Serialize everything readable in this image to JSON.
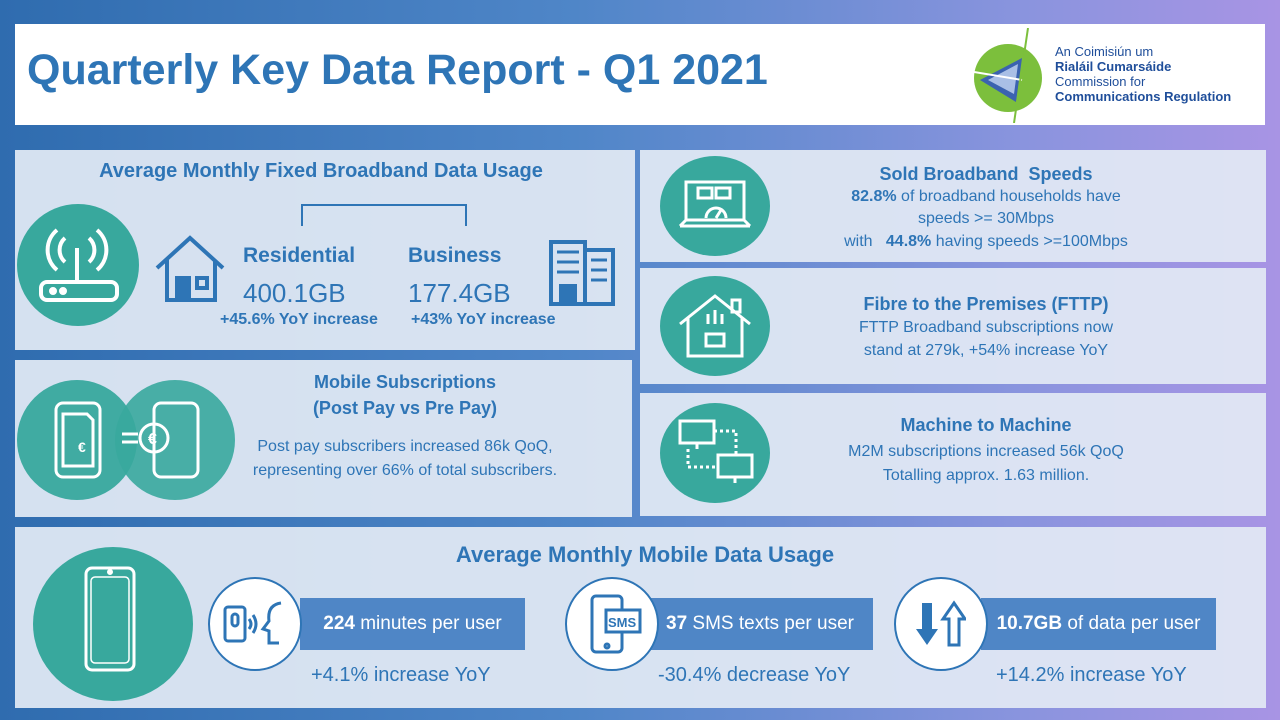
{
  "header": {
    "title": "Quarterly Key Data Report - Q1 2021",
    "logo": {
      "line1": "An Coimisiún um",
      "line2": "Rialáil Cumarsáide",
      "line3": "Commission for",
      "line4": "Communications Regulation"
    }
  },
  "fixed_broadband": {
    "title": "Average Monthly Fixed Broadband Data Usage",
    "residential": {
      "label": "Residential",
      "value": "400.1GB",
      "change": "+45.6% YoY increase"
    },
    "business": {
      "label": "Business",
      "value": "177.4GB",
      "change": "+43% YoY increase"
    }
  },
  "mobile_subs": {
    "title1": "Mobile Subscriptions",
    "title2": "(Post Pay vs Pre Pay)",
    "line1": "Post pay subscribers increased 86k QoQ,",
    "line2": "representing over 66% of total subscribers."
  },
  "speeds": {
    "title": "Sold Broadband  Speeds",
    "pct1": "82.8%",
    "line1": " of broadband households have",
    "line2": "speeds >= 30Mbps",
    "pre3": "with   ",
    "pct2": "44.8%",
    "line3": " having speeds >=100Mbps"
  },
  "fttp": {
    "title": "Fibre to the Premises (FTTP)",
    "line1": "FTTP Broadband subscriptions now",
    "line2": "stand at 279k, +54% increase YoY"
  },
  "m2m": {
    "title": "Machine to Machine",
    "line1": "M2M subscriptions increased 56k QoQ",
    "line2": "Totalling approx. 1.63 million."
  },
  "mobile_usage": {
    "title": "Average Monthly Mobile Data Usage",
    "stats": [
      {
        "value": "224",
        "label": " minutes per user",
        "change": "+4.1% increase YoY",
        "icon": "voice-call-icon"
      },
      {
        "value": "37",
        "label": " SMS texts per user",
        "change": "-30.4% decrease YoY",
        "icon": "sms-icon",
        "icon_text": "SMS"
      },
      {
        "value": "10.7GB",
        "label": " of data per user",
        "change": "+14.2% increase YoY",
        "icon": "up-down-arrows-icon"
      }
    ]
  },
  "colors": {
    "accent": "#2e75b6",
    "teal": "#38a89d",
    "bar": "#4f86c6"
  }
}
